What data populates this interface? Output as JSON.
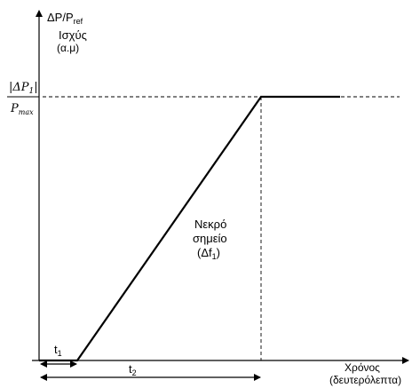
{
  "y_axis": {
    "label": "ΔP/P",
    "label_sub": "ref",
    "label2": "Ισχύς",
    "label3": "(α.μ)",
    "tick_numerator": "|ΔP",
    "tick_numerator_sub": "1",
    "tick_numerator_close": "|",
    "tick_denominator": "P",
    "tick_denominator_sub": "max"
  },
  "x_axis": {
    "label": "Χρόνος",
    "label2": "(δευτερόλεπτα)"
  },
  "annotation": {
    "line1": "Νεκρό",
    "line2": "σημείο",
    "line3_open": "(Δf",
    "line3_sub": "1",
    "line3_close": ")"
  },
  "intervals": {
    "t1": "t",
    "t1_sub": "1",
    "t2": "t",
    "t2_sub": "2"
  },
  "colors": {
    "line": "#000000",
    "text": "#000000"
  }
}
